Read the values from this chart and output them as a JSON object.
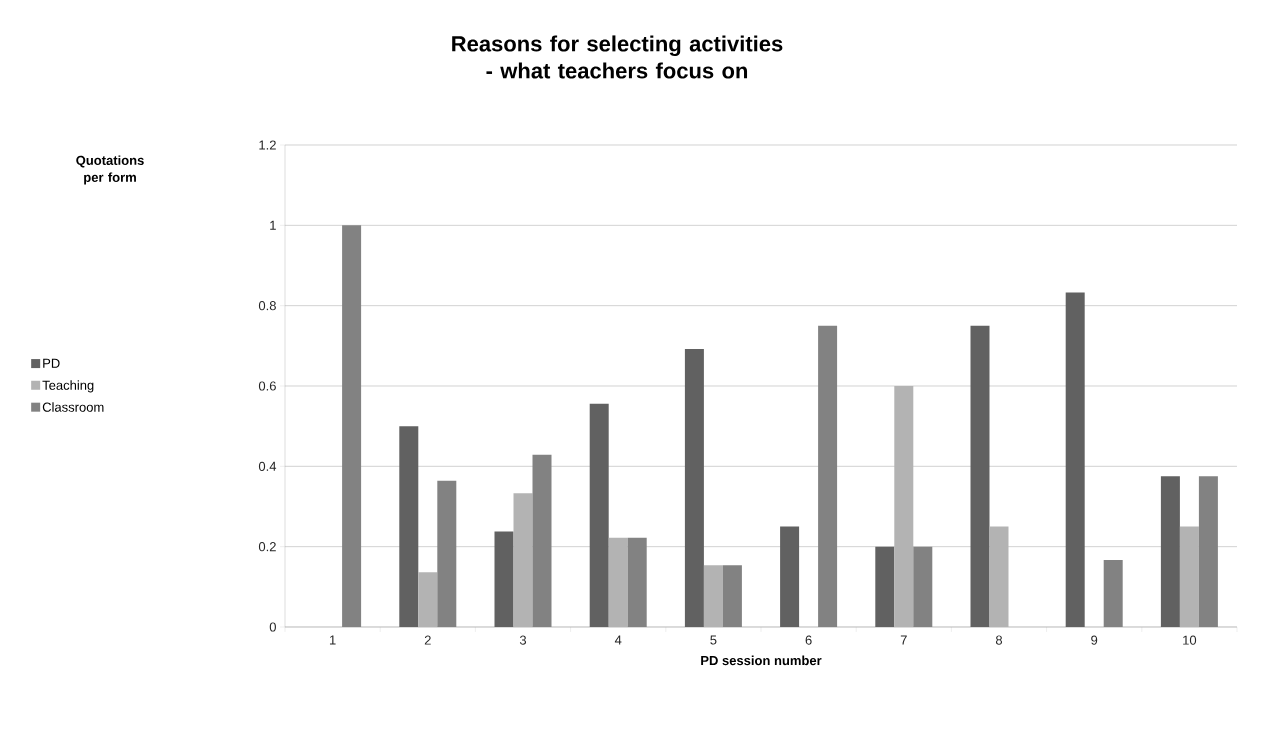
{
  "chart_data": {
    "type": "bar",
    "title": "Reasons for selecting activities - what teachers focus on",
    "xlabel": "PD session number",
    "annotations": [
      "Quotations per form"
    ],
    "categories": [
      "1",
      "2",
      "3",
      "4",
      "5",
      "6",
      "7",
      "8",
      "9",
      "10"
    ],
    "series": [
      {
        "name": "PD",
        "color": "#616161",
        "values": [
          0,
          0.5,
          0.238,
          0.556,
          0.692,
          0.25,
          0.2,
          0.75,
          0.833,
          0.375
        ]
      },
      {
        "name": "Teaching",
        "color": "#b3b3b3",
        "values": [
          0,
          0.136,
          0.333,
          0.222,
          0.154,
          0,
          0.6,
          0.25,
          0,
          0.25
        ]
      },
      {
        "name": "Classroom",
        "color": "#828282",
        "values": [
          1,
          0.364,
          0.429,
          0.222,
          0.154,
          0.75,
          0.2,
          0,
          0.167,
          0.375
        ]
      }
    ],
    "ylim": [
      0,
      1.2
    ],
    "yticks": [
      0,
      0.2,
      0.4,
      0.6,
      0.8,
      1,
      1.2
    ],
    "grid": "y",
    "legend": "left"
  }
}
